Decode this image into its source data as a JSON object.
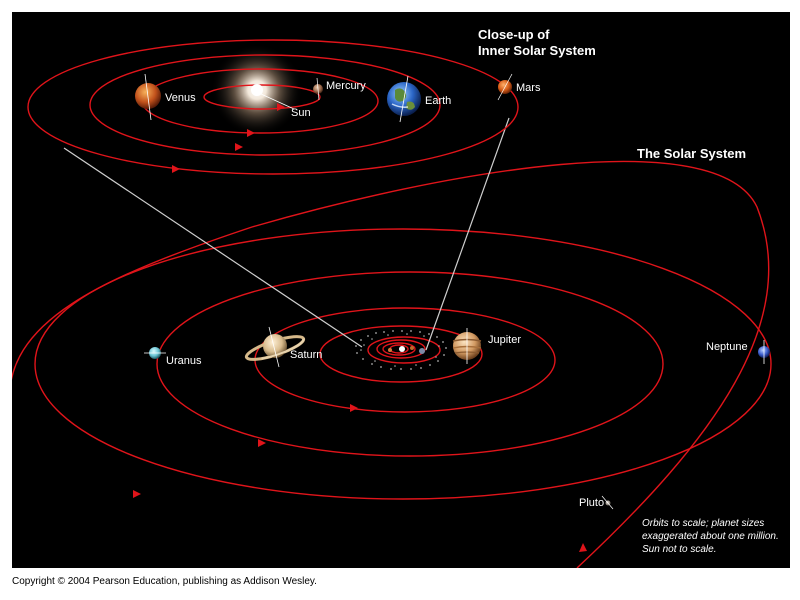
{
  "inner": {
    "title_line1": "Close-up of",
    "title_line2": "Inner Solar System",
    "labels": {
      "venus": "Venus",
      "mercury": "Mercury",
      "sun": "Sun",
      "earth": "Earth",
      "mars": "Mars"
    }
  },
  "outer": {
    "title": "The Solar System",
    "labels": {
      "uranus": "Uranus",
      "saturn": "Saturn",
      "jupiter": "Jupiter",
      "neptune": "Neptune",
      "pluto": "Pluto"
    }
  },
  "note": {
    "line1": "Orbits to scale; planet sizes",
    "line2": "exaggerated about one million.",
    "line3": "Sun not to scale."
  },
  "copyright": "Copyright © 2004 Pearson Education, publishing as Addison Wesley.",
  "colors": {
    "background": "#000000",
    "orbit": "#e0141a",
    "connector": "#cfcfcf"
  }
}
